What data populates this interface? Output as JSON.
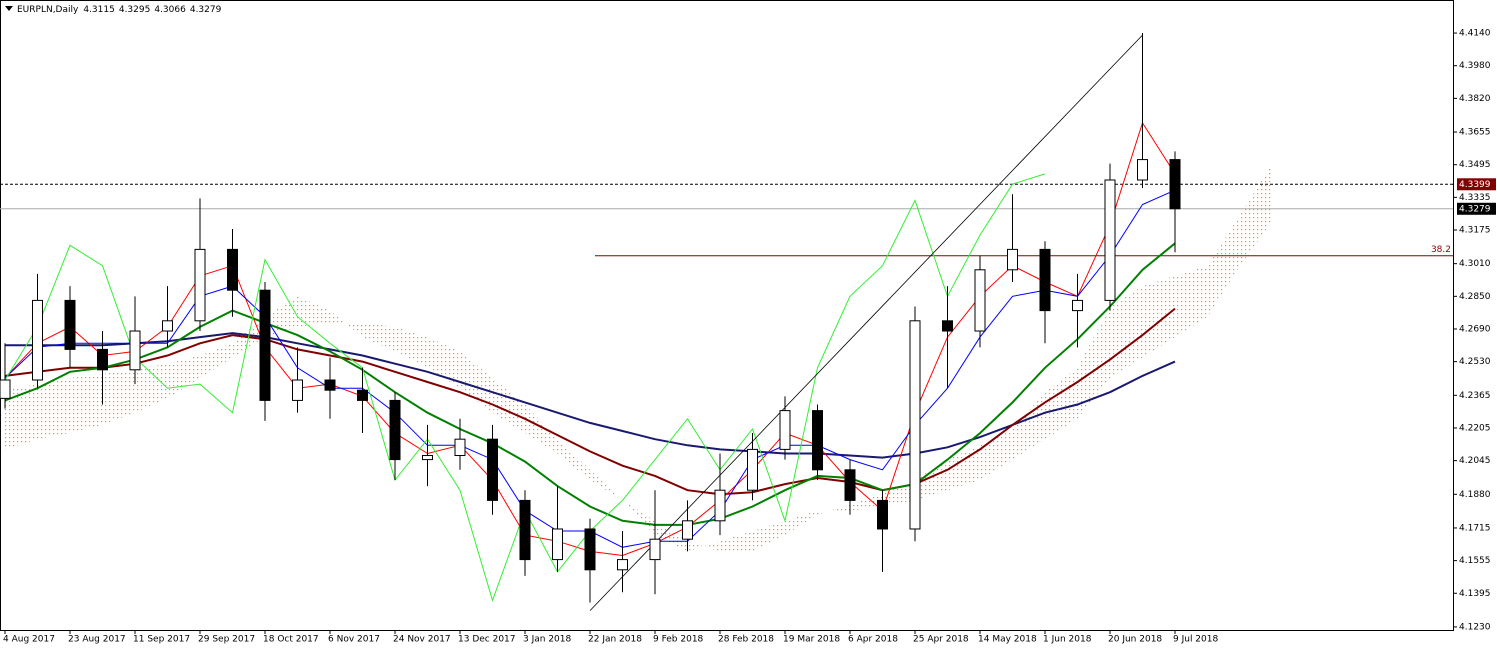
{
  "chart_data": {
    "type": "candlestick",
    "title": "EURPLN,Daily",
    "ohlc_header": [
      4.3115,
      4.3295,
      4.3066,
      4.3279
    ],
    "categories": [
      "4 Aug 2017",
      null,
      "23 Aug 2017",
      null,
      "11 Sep 2017",
      null,
      "29 Sep 2017",
      null,
      "18 Oct 2017",
      null,
      "6 Nov 2017",
      null,
      "24 Nov 2017",
      null,
      "13 Dec 2017",
      null,
      "3 Jan 2018",
      null,
      "22 Jan 2018",
      null,
      "9 Feb 2018",
      null,
      "28 Feb 2018",
      null,
      "19 Mar 2018",
      null,
      "6 Apr 2018",
      null,
      "25 Apr 2018",
      null,
      "14 May 2018",
      null,
      "1 Jun 2018",
      null,
      "20 Jun 2018",
      null,
      "9 Jul 2018",
      null,
      null,
      null
    ],
    "open": [
      4.235,
      4.244,
      4.283,
      4.259,
      4.249,
      4.268,
      4.273,
      4.308,
      4.288,
      4.234,
      4.244,
      4.239,
      4.234,
      4.205,
      4.207,
      4.215,
      4.185,
      4.156,
      4.171,
      4.151,
      4.156,
      4.166,
      4.175,
      4.19,
      4.21,
      4.229,
      4.2,
      4.185,
      4.171,
      4.273,
      4.268,
      4.298,
      4.308,
      4.278,
      4.283,
      4.342,
      4.352,
      null,
      null,
      null
    ],
    "high": [
      4.262,
      4.296,
      4.29,
      4.268,
      4.285,
      4.29,
      4.333,
      4.318,
      4.292,
      4.26,
      4.255,
      4.25,
      4.238,
      4.222,
      4.225,
      4.222,
      4.19,
      4.192,
      4.176,
      4.17,
      4.19,
      4.185,
      4.208,
      4.218,
      4.236,
      4.232,
      4.205,
      4.19,
      4.28,
      4.29,
      4.305,
      4.335,
      4.312,
      4.296,
      4.35,
      4.414,
      4.356,
      null,
      null,
      null
    ],
    "low": [
      4.23,
      4.24,
      4.25,
      4.232,
      4.242,
      4.26,
      4.268,
      4.275,
      4.224,
      4.228,
      4.225,
      4.218,
      4.195,
      4.192,
      4.2,
      4.178,
      4.148,
      4.15,
      4.135,
      4.14,
      4.139,
      4.16,
      4.168,
      4.185,
      4.205,
      4.195,
      4.178,
      4.15,
      4.165,
      4.24,
      4.26,
      4.292,
      4.262,
      4.26,
      4.278,
      4.338,
      4.3066,
      null,
      null,
      null
    ],
    "close": [
      4.244,
      4.283,
      4.259,
      4.249,
      4.268,
      4.273,
      4.308,
      4.288,
      4.234,
      4.244,
      4.239,
      4.234,
      4.205,
      4.207,
      4.215,
      4.185,
      4.156,
      4.171,
      4.151,
      4.156,
      4.166,
      4.175,
      4.19,
      4.21,
      4.229,
      4.2,
      4.185,
      4.171,
      4.273,
      4.268,
      4.298,
      4.308,
      4.278,
      4.283,
      4.342,
      4.352,
      4.3279,
      null,
      null,
      null
    ],
    "lines": [
      {
        "color": "#191970",
        "width": 2,
        "values": [
          4.261,
          4.261,
          4.261,
          4.261,
          4.262,
          4.263,
          4.265,
          4.267,
          4.265,
          4.262,
          4.259,
          4.256,
          4.252,
          4.248,
          4.243,
          4.238,
          4.233,
          4.228,
          4.223,
          4.219,
          4.215,
          4.212,
          4.21,
          4.209,
          4.208,
          4.208,
          4.207,
          4.206,
          4.208,
          4.211,
          4.216,
          4.222,
          4.228,
          4.232,
          4.238,
          4.246,
          4.253,
          null,
          null,
          null
        ]
      },
      {
        "color": "#800000",
        "width": 2,
        "values": [
          4.246,
          4.248,
          4.25,
          4.25,
          4.252,
          4.256,
          4.262,
          4.266,
          4.264,
          4.259,
          4.256,
          4.253,
          4.248,
          4.243,
          4.238,
          4.232,
          4.225,
          4.217,
          4.209,
          4.202,
          4.197,
          4.19,
          4.188,
          4.189,
          4.193,
          4.196,
          4.194,
          4.19,
          4.193,
          4.2,
          4.21,
          4.222,
          4.233,
          4.243,
          4.254,
          4.266,
          4.279,
          null,
          null,
          null
        ]
      },
      {
        "color": "#008000",
        "width": 2,
        "values": [
          4.234,
          4.24,
          4.248,
          4.25,
          4.254,
          4.26,
          4.27,
          4.278,
          4.272,
          4.266,
          4.258,
          4.249,
          4.238,
          4.228,
          4.22,
          4.213,
          4.204,
          4.192,
          4.182,
          4.175,
          4.173,
          4.173,
          4.176,
          4.182,
          4.19,
          4.197,
          4.196,
          4.19,
          4.193,
          4.205,
          4.218,
          4.233,
          4.25,
          4.264,
          4.28,
          4.298,
          4.311,
          null,
          null,
          null
        ]
      },
      {
        "color": "#ff0000",
        "width": 1,
        "values": [
          4.245,
          4.262,
          4.27,
          4.256,
          4.258,
          4.27,
          4.295,
          4.3,
          4.26,
          4.24,
          4.242,
          4.236,
          4.218,
          4.208,
          4.212,
          4.195,
          4.168,
          4.165,
          4.16,
          4.158,
          4.164,
          4.172,
          4.185,
          4.2,
          4.218,
          4.212,
          4.194,
          4.18,
          4.228,
          4.265,
          4.285,
          4.3,
          4.292,
          4.285,
          4.32,
          4.37,
          4.345,
          null,
          null,
          null
        ]
      },
      {
        "color": "#0000ff",
        "width": 1,
        "values": [
          4.245,
          4.26,
          4.262,
          4.262,
          4.262,
          4.262,
          4.285,
          4.29,
          4.275,
          4.25,
          4.24,
          4.24,
          4.228,
          4.212,
          4.212,
          4.205,
          4.18,
          4.17,
          4.17,
          4.162,
          4.165,
          4.165,
          4.18,
          4.205,
          4.212,
          4.212,
          4.205,
          4.2,
          4.222,
          4.24,
          4.265,
          4.285,
          4.288,
          4.285,
          4.305,
          4.33,
          4.337,
          null,
          null,
          null
        ]
      },
      {
        "color": "#33ee33",
        "width": 1,
        "values": [
          4.244,
          4.27,
          4.31,
          4.3,
          4.255,
          4.24,
          4.242,
          4.228,
          4.303,
          4.275,
          4.262,
          4.25,
          4.195,
          4.215,
          4.19,
          4.136,
          4.18,
          4.15,
          4.17,
          4.185,
          4.205,
          4.225,
          4.2,
          4.22,
          4.175,
          4.25,
          4.285,
          4.3,
          4.332,
          4.285,
          4.315,
          4.34,
          4.345,
          null,
          null,
          null,
          null,
          null,
          null,
          null
        ]
      }
    ],
    "cloud": {
      "color": "#e0904a",
      "span_a": [
        4.239,
        4.242,
        4.245,
        4.247,
        4.249,
        4.252,
        4.256,
        4.262,
        4.275,
        4.285,
        4.278,
        4.265,
        4.258,
        4.25,
        4.24,
        4.228,
        4.218,
        4.208,
        4.195,
        4.185,
        4.175,
        4.165,
        4.16,
        4.16,
        4.168,
        4.178,
        4.183,
        4.188,
        4.195,
        4.205,
        4.212,
        4.22,
        4.238,
        4.25,
        4.28,
        4.29,
        4.295,
        4.3,
        4.325,
        4.35
      ],
      "span_b": [
        4.21,
        4.215,
        4.218,
        4.222,
        4.228,
        4.235,
        4.245,
        4.255,
        4.265,
        4.27,
        4.272,
        4.272,
        4.27,
        4.265,
        4.258,
        4.245,
        4.232,
        4.215,
        4.2,
        4.185,
        4.168,
        4.16,
        4.165,
        4.17,
        4.175,
        4.18,
        4.18,
        4.182,
        4.185,
        4.19,
        4.195,
        4.205,
        4.215,
        4.225,
        4.245,
        4.255,
        4.265,
        4.275,
        4.3,
        4.322
      ]
    },
    "trendline": {
      "color": "#000000",
      "values": [
        null,
        null,
        null,
        null,
        null,
        null,
        null,
        null,
        null,
        null,
        null,
        null,
        null,
        null,
        null,
        null,
        null,
        null,
        4.131,
        null,
        null,
        null,
        null,
        null,
        null,
        null,
        null,
        null,
        null,
        null,
        null,
        null,
        null,
        null,
        null,
        4.413,
        null,
        null,
        null,
        null
      ]
    },
    "price_lines": [
      {
        "value": 4.3399,
        "style": "dashed",
        "color": "#800000"
      },
      {
        "value": 4.3279,
        "style": "solid",
        "color": "#000000"
      }
    ],
    "fibo": {
      "value": 4.3049,
      "label": "38.2",
      "color": "#8b0000"
    },
    "ylim": [
      4.1215,
      4.4302
    ],
    "yticks": [
      {
        "value": 4.414,
        "label": "4.4140"
      },
      {
        "value": 4.398,
        "label": "4.3980"
      },
      {
        "value": 4.382,
        "label": "4.3820"
      },
      4.3655,
      4.3495,
      4.3335,
      4.3175,
      {
        "value": 4.301,
        "label": "4.3010"
      },
      {
        "value": 4.285,
        "label": "4.2850"
      },
      {
        "value": 4.269,
        "label": "4.2690"
      },
      {
        "value": 4.253,
        "label": "4.2530"
      },
      4.2365,
      4.2205,
      4.2045,
      {
        "value": 4.188,
        "label": "4.1880"
      },
      4.1715,
      4.1555,
      4.1395,
      {
        "value": 4.123,
        "label": "4.1230"
      }
    ]
  }
}
